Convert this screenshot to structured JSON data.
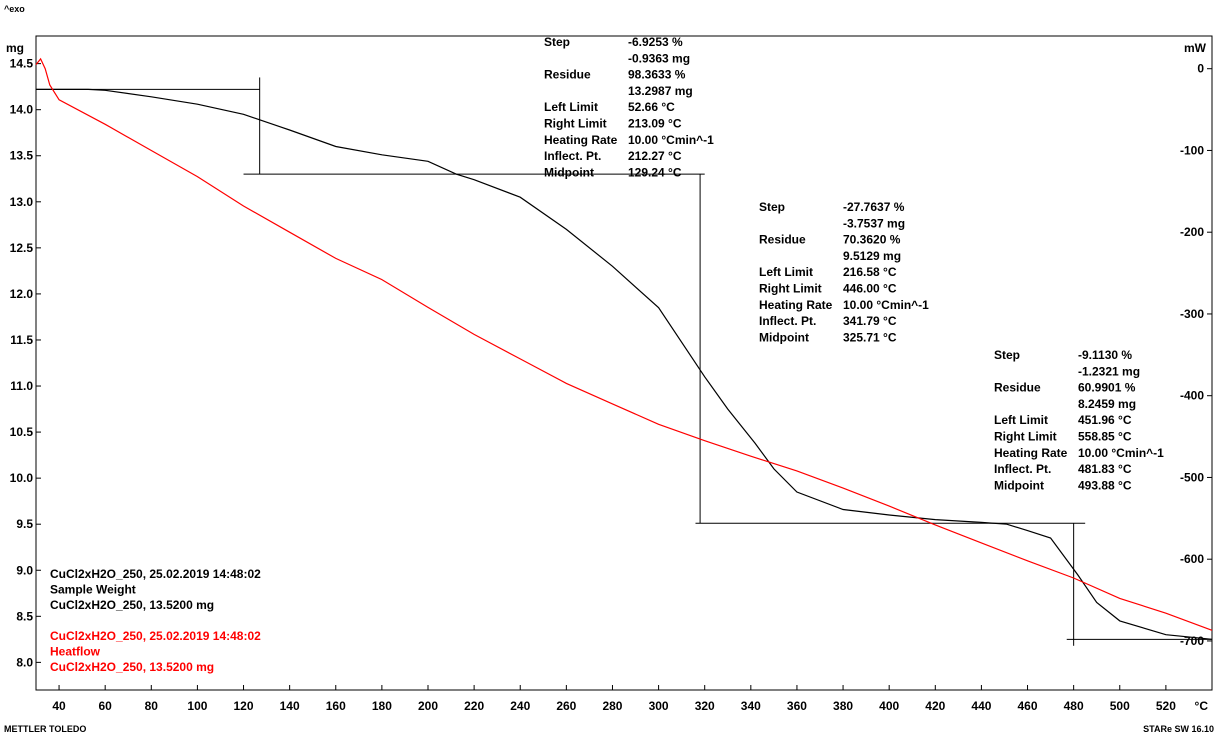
{
  "header": {
    "exo_label": "^exo"
  },
  "footer": {
    "left_brand": "METTLER TOLEDO",
    "right_brand": "STARe SW 16.10"
  },
  "chart_data": {
    "type": "line",
    "x_unit": "°C",
    "y_left_unit": "mg",
    "y_right_unit": "mW",
    "xlim": [
      30,
      540
    ],
    "ylim_left": [
      7.7,
      14.8
    ],
    "ylim_right": [
      -760,
      40
    ],
    "x_ticks": [
      40,
      60,
      80,
      100,
      120,
      140,
      160,
      180,
      200,
      220,
      240,
      260,
      280,
      300,
      320,
      340,
      360,
      380,
      400,
      420,
      440,
      460,
      480,
      500,
      520
    ],
    "y_left_ticks": [
      8.0,
      8.5,
      9.0,
      9.5,
      10.0,
      10.5,
      11.0,
      11.5,
      12.0,
      12.5,
      13.0,
      13.5,
      14.0,
      14.5
    ],
    "y_right_ticks": [
      0,
      -100,
      -200,
      -300,
      -400,
      -500,
      -600,
      -700
    ],
    "series": [
      {
        "name": "Sample Weight",
        "axis": "left",
        "color": "#000000",
        "x": [
          30,
          40,
          52.7,
          60,
          80,
          100,
          120,
          140,
          160,
          180,
          200,
          212.3,
          220,
          240,
          260,
          280,
          300,
          320,
          330,
          341.8,
          350,
          360,
          380,
          400,
          420,
          440,
          451,
          460,
          470,
          481.8,
          490,
          500,
          520,
          540
        ],
        "y": [
          14.22,
          14.22,
          14.22,
          14.21,
          14.14,
          14.06,
          13.95,
          13.78,
          13.6,
          13.51,
          13.44,
          13.3,
          13.24,
          13.05,
          12.7,
          12.3,
          11.85,
          11.1,
          10.75,
          10.38,
          10.1,
          9.85,
          9.66,
          9.6,
          9.55,
          9.52,
          9.5,
          9.43,
          9.35,
          8.95,
          8.65,
          8.45,
          8.3,
          8.25
        ]
      },
      {
        "name": "Heatflow",
        "axis": "right",
        "color": "#ff0000",
        "x": [
          30,
          32,
          34,
          36,
          40,
          60,
          80,
          100,
          120,
          140,
          160,
          180,
          200,
          220,
          240,
          260,
          280,
          300,
          320,
          340,
          360,
          380,
          400,
          420,
          440,
          460,
          480,
          500,
          520,
          540
        ],
        "y": [
          5,
          12,
          0,
          -20,
          -38,
          -68,
          -100,
          -132,
          -168,
          -200,
          -232,
          -258,
          -292,
          -325,
          -355,
          -385,
          -410,
          -435,
          -455,
          -474,
          -492,
          -513,
          -535,
          -558,
          -580,
          -602,
          -623,
          -648,
          -666,
          -687
        ]
      }
    ],
    "step_lines": [
      {
        "x1": 30,
        "x2": 127,
        "y": 14.22
      },
      {
        "x1": 127,
        "x2": 128,
        "y1": 14.35,
        "y2": 13.3,
        "vertical": true
      },
      {
        "x1": 120,
        "x2": 320,
        "y": 13.3
      },
      {
        "x1": 318,
        "x2": 319,
        "y1": 13.3,
        "y2": 9.51,
        "vertical": true
      },
      {
        "x1": 316,
        "x2": 485,
        "y": 9.51
      },
      {
        "x1": 480,
        "x2": 481,
        "y1": 9.51,
        "y2": 8.18,
        "vertical": true
      },
      {
        "x1": 477,
        "x2": 540,
        "y": 8.25
      }
    ],
    "steps": [
      {
        "rows": [
          [
            "Step",
            "-6.9253 %"
          ],
          [
            "",
            "-0.9363 mg"
          ],
          [
            "Residue",
            "98.3633 %"
          ],
          [
            "",
            "13.2987 mg"
          ],
          [
            "Left Limit",
            "52.66 °C"
          ],
          [
            "Right Limit",
            "213.09 °C"
          ],
          [
            "Heating Rate",
            "10.00 °Cmin^-1"
          ],
          [
            "Inflect. Pt.",
            "212.27 °C"
          ],
          [
            "Midpoint",
            "129.24 °C"
          ]
        ]
      },
      {
        "rows": [
          [
            "Step",
            "-27.7637 %"
          ],
          [
            "",
            "-3.7537 mg"
          ],
          [
            "Residue",
            "70.3620 %"
          ],
          [
            "",
            "9.5129 mg"
          ],
          [
            "Left Limit",
            "216.58 °C"
          ],
          [
            "Right Limit",
            "446.00 °C"
          ],
          [
            "Heating Rate",
            "10.00 °Cmin^-1"
          ],
          [
            "Inflect. Pt.",
            "341.79 °C"
          ],
          [
            "Midpoint",
            "325.71 °C"
          ]
        ]
      },
      {
        "rows": [
          [
            "Step",
            "-9.1130 %"
          ],
          [
            "",
            "-1.2321 mg"
          ],
          [
            "Residue",
            "60.9901 %"
          ],
          [
            "",
            "8.2459 mg"
          ],
          [
            "Left Limit",
            "451.96 °C"
          ],
          [
            "Right Limit",
            "558.85 °C"
          ],
          [
            "Heating Rate",
            "10.00 °Cmin^-1"
          ],
          [
            "Inflect. Pt.",
            "481.83 °C"
          ],
          [
            "Midpoint",
            "493.88 °C"
          ]
        ]
      }
    ],
    "legend": [
      {
        "color": "#000000",
        "lines": [
          "CuCl2xH2O_250, 25.02.2019 14:48:02",
          "Sample Weight",
          "CuCl2xH2O_250, 13.5200 mg"
        ]
      },
      {
        "color": "#ff0000",
        "lines": [
          "CuCl2xH2O_250, 25.02.2019 14:48:02",
          "Heatflow",
          "CuCl2xH2O_250, 13.5200 mg"
        ]
      }
    ]
  }
}
